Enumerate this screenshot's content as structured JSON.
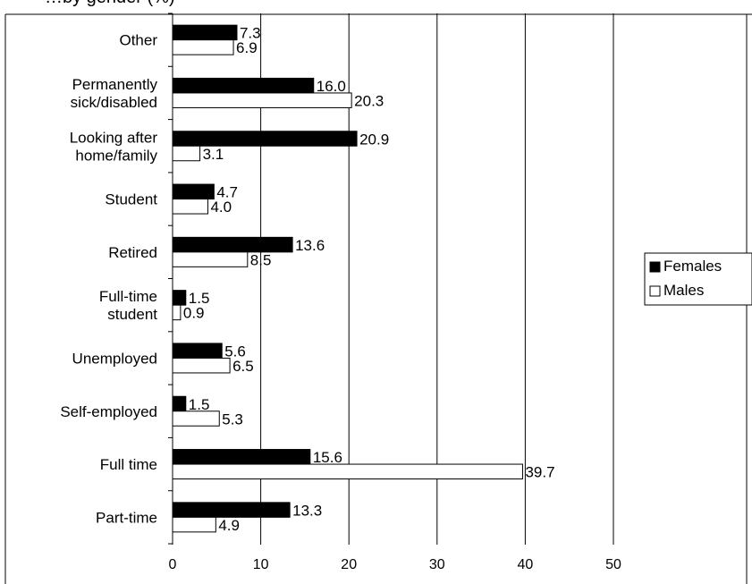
{
  "chart_data": {
    "type": "bar",
    "orientation": "horizontal",
    "title": "…by gender (%)",
    "categories": [
      "Other",
      "Permanently sick/disabled",
      "Looking after home/family",
      "Student",
      "Retired",
      "Full-time student",
      "Unemployed",
      "Self-employed",
      "Full time",
      "Part-time"
    ],
    "category_lines": [
      [
        "Other"
      ],
      [
        "Permanently",
        "sick/disabled"
      ],
      [
        "Looking after",
        "home/family"
      ],
      [
        "Student"
      ],
      [
        "Retired"
      ],
      [
        "Full-time",
        "student"
      ],
      [
        "Unemployed"
      ],
      [
        "Self-employed"
      ],
      [
        "Full time"
      ],
      [
        "Part-time"
      ]
    ],
    "series": [
      {
        "name": "Females",
        "values": [
          7.3,
          16.0,
          20.9,
          4.7,
          13.6,
          1.5,
          5.6,
          1.5,
          15.6,
          13.3
        ],
        "color": "#000000"
      },
      {
        "name": "Males",
        "values": [
          6.9,
          20.3,
          3.1,
          4.0,
          8.5,
          0.9,
          6.5,
          5.3,
          39.7,
          4.9
        ],
        "color": "#ffffff"
      }
    ],
    "xlim": [
      0,
      50
    ],
    "xticks": [
      0,
      10,
      20,
      30,
      40,
      50
    ],
    "grid": true,
    "legend": "right"
  }
}
